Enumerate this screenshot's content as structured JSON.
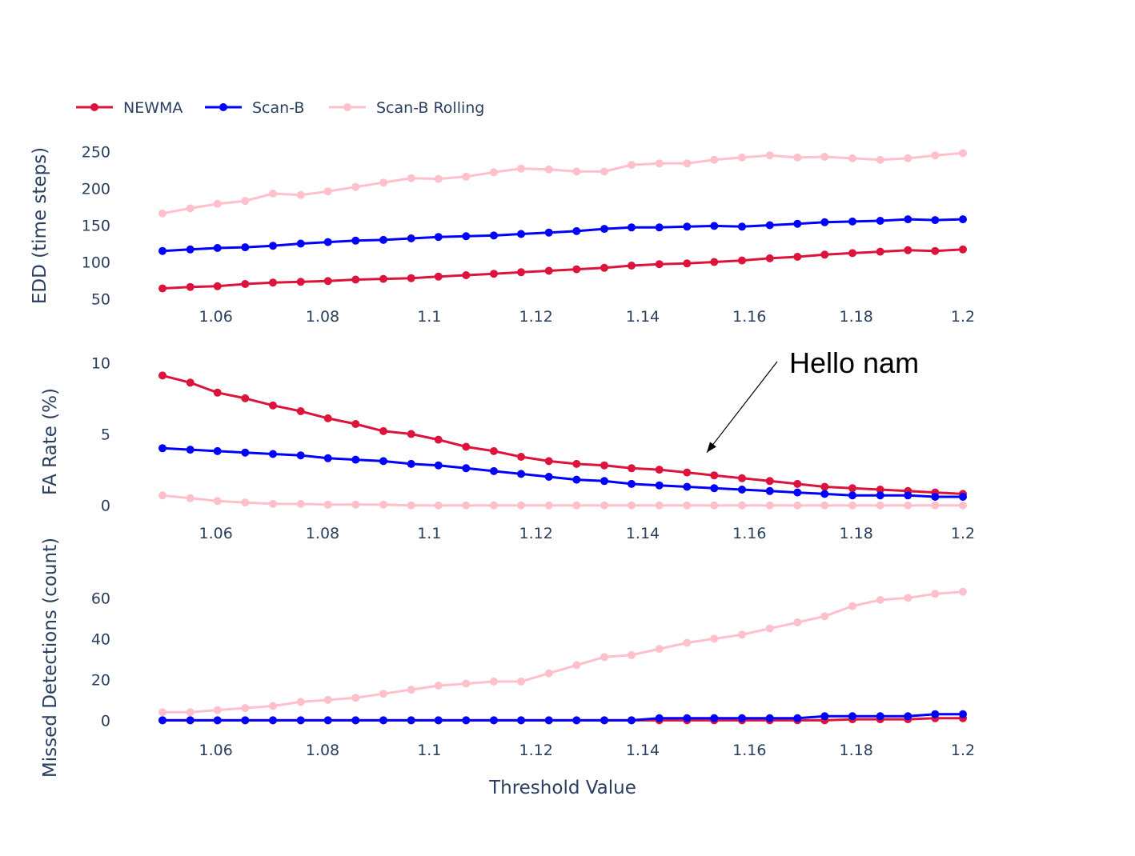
{
  "chart_data": {
    "type": "line",
    "xlabel": "Threshold Value",
    "legend_placement": "top-left",
    "grid": false,
    "x": [
      1.05,
      1.0552,
      1.0603,
      1.0655,
      1.0707,
      1.0759,
      1.081,
      1.0862,
      1.0914,
      1.0966,
      1.1017,
      1.1069,
      1.1121,
      1.1172,
      1.1224,
      1.1276,
      1.1328,
      1.1379,
      1.1431,
      1.1483,
      1.1534,
      1.1586,
      1.1638,
      1.169,
      1.1741,
      1.1793,
      1.1845,
      1.1897,
      1.1948,
      1.2
    ],
    "xlim": [
      1.05,
      1.2
    ],
    "xticks": [
      "1.06",
      "1.08",
      "1.1",
      "1.12",
      "1.14",
      "1.16",
      "1.18",
      "1.2"
    ],
    "xtick_values": [
      1.06,
      1.08,
      1.1,
      1.12,
      1.14,
      1.16,
      1.18,
      1.2
    ],
    "series_names": [
      "NEWMA",
      "Scan-B",
      "Scan-B Rolling"
    ],
    "series_colors": [
      "#dc143c",
      "#0000ff",
      "#ffc0cb"
    ],
    "subplots": [
      {
        "ylabel": "EDD (time steps)",
        "ylim": [
          45,
          255
        ],
        "yticks": [
          "50",
          "100",
          "150",
          "200",
          "250"
        ],
        "ytick_values": [
          50,
          100,
          150,
          200,
          250
        ],
        "series": [
          {
            "name": "NEWMA",
            "values": [
              64,
              66,
              67,
              70,
              72,
              73,
              74,
              76,
              77,
              78,
              80,
              82,
              84,
              86,
              88,
              90,
              92,
              95,
              97,
              98,
              100,
              102,
              105,
              107,
              110,
              112,
              114,
              116,
              115,
              117
            ]
          },
          {
            "name": "Scan-B",
            "values": [
              115,
              117,
              119,
              120,
              122,
              125,
              127,
              129,
              130,
              132,
              134,
              135,
              136,
              138,
              140,
              142,
              145,
              147,
              147,
              148,
              149,
              148,
              150,
              152,
              154,
              155,
              156,
              158,
              157,
              158
            ]
          },
          {
            "name": "Scan-B Rolling",
            "values": [
              166,
              173,
              179,
              183,
              193,
              191,
              196,
              202,
              208,
              214,
              213,
              216,
              222,
              227,
              226,
              223,
              223,
              232,
              234,
              234,
              239,
              242,
              245,
              242,
              243,
              241,
              239,
              241,
              245,
              248
            ]
          }
        ]
      },
      {
        "ylabel": "FA Rate (%)",
        "ylim": [
          -0.3,
          10.3
        ],
        "yticks": [
          "0",
          "5",
          "10"
        ],
        "ytick_values": [
          0,
          5,
          10
        ],
        "series": [
          {
            "name": "NEWMA",
            "values": [
              9.1,
              8.6,
              7.9,
              7.5,
              7.0,
              6.6,
              6.1,
              5.7,
              5.2,
              5.0,
              4.6,
              4.1,
              3.8,
              3.4,
              3.1,
              2.9,
              2.8,
              2.6,
              2.5,
              2.3,
              2.1,
              1.9,
              1.7,
              1.5,
              1.3,
              1.2,
              1.1,
              1.0,
              0.9,
              0.8
            ]
          },
          {
            "name": "Scan-B",
            "values": [
              4.0,
              3.9,
              3.8,
              3.7,
              3.6,
              3.5,
              3.3,
              3.2,
              3.1,
              2.9,
              2.8,
              2.6,
              2.4,
              2.2,
              2.0,
              1.8,
              1.7,
              1.5,
              1.4,
              1.3,
              1.2,
              1.1,
              1.0,
              0.9,
              0.8,
              0.7,
              0.7,
              0.7,
              0.6,
              0.6
            ]
          },
          {
            "name": "Scan-B Rolling",
            "values": [
              0.7,
              0.5,
              0.3,
              0.2,
              0.1,
              0.1,
              0.05,
              0.05,
              0.05,
              0.0,
              0.0,
              0.0,
              0.0,
              0.0,
              0.0,
              0.0,
              0.0,
              0.0,
              0.0,
              0.0,
              0.0,
              0.0,
              0.0,
              0.0,
              0.0,
              0.0,
              0.0,
              0.0,
              0.0,
              0.0
            ]
          }
        ]
      },
      {
        "ylabel": "Missed Detections (count)",
        "ylim": [
          -3,
          68
        ],
        "yticks": [
          "0",
          "20",
          "40",
          "60"
        ],
        "ytick_values": [
          0,
          20,
          40,
          60
        ],
        "series": [
          {
            "name": "NEWMA",
            "values": [
              0,
              0,
              0,
              0,
              0,
              0,
              0,
              0,
              0,
              0,
              0,
              0,
              0,
              0,
              0,
              0,
              0,
              0,
              0,
              0,
              0,
              0,
              0,
              0,
              0,
              0.5,
              0.5,
              0.5,
              1,
              1
            ]
          },
          {
            "name": "Scan-B",
            "values": [
              0,
              0,
              0,
              0,
              0,
              0,
              0,
              0,
              0,
              0,
              0,
              0,
              0,
              0,
              0,
              0,
              0,
              0,
              1,
              1,
              1,
              1,
              1,
              1,
              2,
              2,
              2,
              2,
              3,
              3
            ]
          },
          {
            "name": "Scan-B Rolling",
            "values": [
              4,
              4,
              5,
              6,
              7,
              9,
              10,
              11,
              13,
              15,
              17,
              18,
              19,
              19,
              23,
              27,
              31,
              32,
              35,
              38,
              40,
              42,
              45,
              48,
              51,
              56,
              59,
              60,
              62,
              63
            ]
          }
        ]
      }
    ],
    "annotations": [
      {
        "text": "Hello nam",
        "arrow_to": {
          "x": 1.152,
          "subplot": 1,
          "y": 3.7
        }
      }
    ]
  }
}
